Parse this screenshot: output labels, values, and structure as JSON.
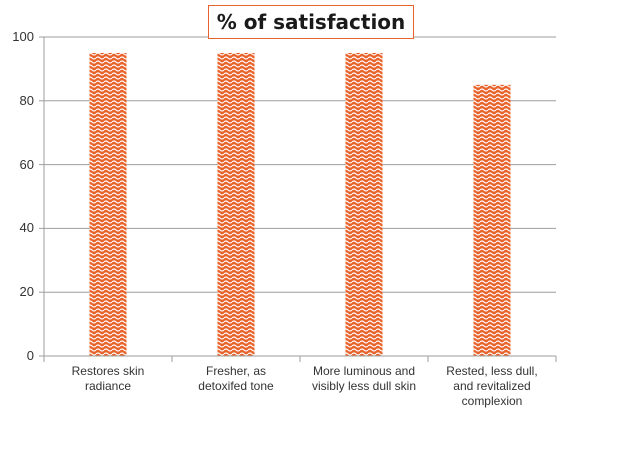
{
  "chart_data": {
    "type": "bar",
    "title": "% of satisfaction",
    "categories": [
      "Restores skin radiance",
      "Fresher, as detoxifed tone",
      "More luminous and visibly less dull skin",
      "Rested, less dull, and revitalized complexion"
    ],
    "category_lines": [
      [
        "Restores skin",
        "radiance"
      ],
      [
        "Fresher, as",
        "detoxifed tone"
      ],
      [
        "More luminous and",
        "visibly less dull skin"
      ],
      [
        "Rested, less dull,",
        "and revitalized",
        "complexion"
      ]
    ],
    "values": [
      95,
      95,
      95,
      85
    ],
    "ylim": [
      0,
      100
    ],
    "yticks": [
      "0",
      "20",
      "40",
      "60",
      "80",
      "100"
    ],
    "grid": true,
    "legend": "none",
    "bar_color": "#e8632b",
    "pattern": "wave"
  }
}
